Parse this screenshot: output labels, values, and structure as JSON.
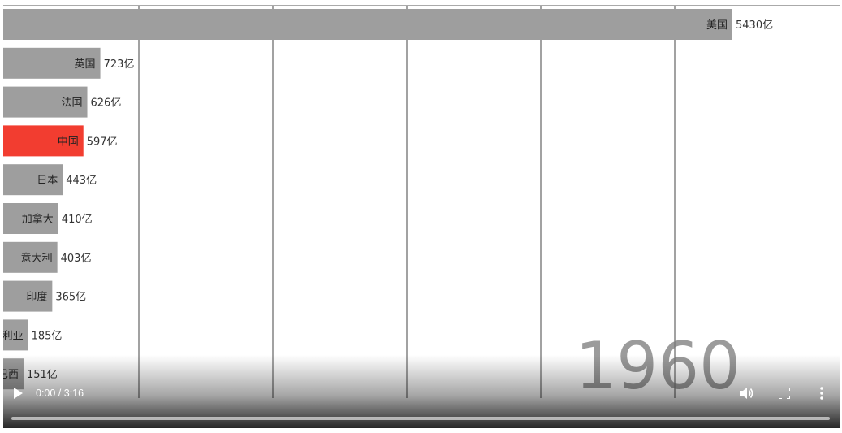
{
  "chart_data": {
    "type": "bar",
    "orientation": "horizontal",
    "unit_suffix": "亿",
    "year": "1960",
    "max_visible": 5430,
    "highlight_color": "#f23d30",
    "default_color": "#9e9e9e",
    "bars": [
      {
        "label": "美国",
        "value": 5430,
        "value_label": "5430亿",
        "highlight": false
      },
      {
        "label": "英国",
        "value": 723,
        "value_label": "723亿",
        "highlight": false
      },
      {
        "label": "法国",
        "value": 626,
        "value_label": "626亿",
        "highlight": false
      },
      {
        "label": "中国",
        "value": 597,
        "value_label": "597亿",
        "highlight": true
      },
      {
        "label": "日本",
        "value": 443,
        "value_label": "443亿",
        "highlight": false
      },
      {
        "label": "加拿大",
        "value": 410,
        "value_label": "410亿",
        "highlight": false
      },
      {
        "label": "意大利",
        "value": 403,
        "value_label": "403亿",
        "highlight": false
      },
      {
        "label": "印度",
        "value": 365,
        "value_label": "365亿",
        "highlight": false
      },
      {
        "label": "利亚",
        "value": 185,
        "value_label": "185亿",
        "highlight": false
      },
      {
        "label": "巴西",
        "value": 151,
        "value_label": "151亿",
        "highlight": false
      }
    ]
  },
  "player": {
    "time": "0:00 / 3:16",
    "progress": 0,
    "icons": {
      "play": "play-icon",
      "volume": "volume-icon",
      "fullscreen": "fullscreen-icon",
      "more": "more-vertical-icon"
    }
  }
}
